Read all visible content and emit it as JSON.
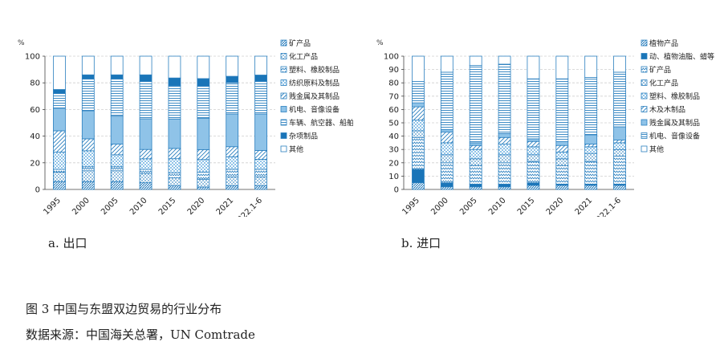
{
  "caption": "图 3   中国与东盟双边贸易的行业分布",
  "source": "数据来源：中国海关总署，UN Comtrade",
  "colors": {
    "dark": "#1a75b8",
    "light": "#8fc3e8",
    "line": "#2a7fbf",
    "grid": "#cfcfcf"
  },
  "chart_data": [
    {
      "type": "bar",
      "stacked": true,
      "subtitle": "a. 出口",
      "ylabel": "%",
      "ylim": [
        0,
        100
      ],
      "yticks": [
        0,
        20,
        40,
        60,
        80,
        100
      ],
      "grid": true,
      "legend_position": "right",
      "categories": [
        "1995",
        "2000",
        "2005",
        "2010",
        "2015",
        "2020",
        "2021",
        "2022.1-6"
      ],
      "series": [
        {
          "name": "矿产品",
          "pattern": "diag-dense",
          "values": [
            6,
            6,
            6,
            5,
            3,
            2,
            3,
            3
          ]
        },
        {
          "name": "化工产品",
          "pattern": "dots",
          "values": [
            7,
            8,
            8,
            7,
            6,
            6,
            7,
            7
          ]
        },
        {
          "name": "塑料、橡胶制品",
          "pattern": "zigzag",
          "values": [
            2,
            3,
            3,
            3,
            4,
            6,
            6,
            6
          ]
        },
        {
          "name": "纺织原料及制品",
          "pattern": "checker",
          "values": [
            13,
            12,
            9,
            8,
            11,
            10,
            10,
            8
          ]
        },
        {
          "name": "贱金属及其制品",
          "pattern": "diag",
          "values": [
            16,
            9,
            8,
            7,
            8,
            8,
            8,
            7
          ]
        },
        {
          "name": "机电、音像设备",
          "pattern": "light",
          "values": [
            17,
            21,
            21,
            23,
            23,
            25,
            26,
            29
          ]
        },
        {
          "name": "车辆、航空器、船舶等",
          "pattern": "hlines",
          "values": [
            11,
            24,
            28,
            28,
            26,
            26,
            25,
            26
          ]
        },
        {
          "name": "杂项制品",
          "pattern": "dark",
          "values": [
            3,
            3,
            3,
            5,
            6,
            6,
            5,
            5
          ]
        },
        {
          "name": "其他",
          "pattern": "white",
          "values": [
            25,
            14,
            14,
            14,
            17,
            18,
            16,
            15
          ]
        }
      ]
    },
    {
      "type": "bar",
      "stacked": true,
      "subtitle": "b. 进口",
      "ylabel": "%",
      "ylim": [
        0,
        100
      ],
      "yticks": [
        0,
        10,
        20,
        30,
        40,
        50,
        60,
        70,
        80,
        90,
        100
      ],
      "grid": true,
      "legend_position": "right",
      "categories": [
        "1995",
        "2000",
        "2005",
        "2010",
        "2015",
        "2020",
        "2021",
        "2022.1-6"
      ],
      "series": [
        {
          "name": "植物产品",
          "pattern": "diag-dense",
          "values": [
            5,
            2,
            2,
            2,
            3,
            3,
            3,
            3
          ]
        },
        {
          "name": "动、植物油脂、蜡等",
          "pattern": "dark",
          "values": [
            10,
            3,
            2,
            2,
            2,
            1,
            1,
            1
          ]
        },
        {
          "name": "矿产品",
          "pattern": "zigzag",
          "values": [
            24,
            15,
            14,
            16,
            16,
            14,
            17,
            21
          ]
        },
        {
          "name": "化工产品",
          "pattern": "dots",
          "values": [
            5,
            6,
            5,
            6,
            5,
            5,
            6,
            5
          ]
        },
        {
          "name": "塑料、橡胶制品",
          "pattern": "checker",
          "values": [
            8,
            9,
            7,
            8,
            6,
            5,
            5,
            5
          ]
        },
        {
          "name": "木及木制品",
          "pattern": "diag",
          "values": [
            10,
            8,
            3,
            5,
            4,
            5,
            2,
            2
          ]
        },
        {
          "name": "贱金属及其制品",
          "pattern": "light",
          "values": [
            3,
            2,
            2,
            3,
            2,
            3,
            7,
            10
          ]
        },
        {
          "name": "机电、音像设备",
          "pattern": "hlines",
          "values": [
            16,
            43,
            58,
            52,
            45,
            47,
            43,
            41
          ]
        },
        {
          "name": "其他",
          "pattern": "white",
          "values": [
            19,
            12,
            7,
            6,
            17,
            17,
            16,
            12
          ]
        }
      ]
    }
  ]
}
